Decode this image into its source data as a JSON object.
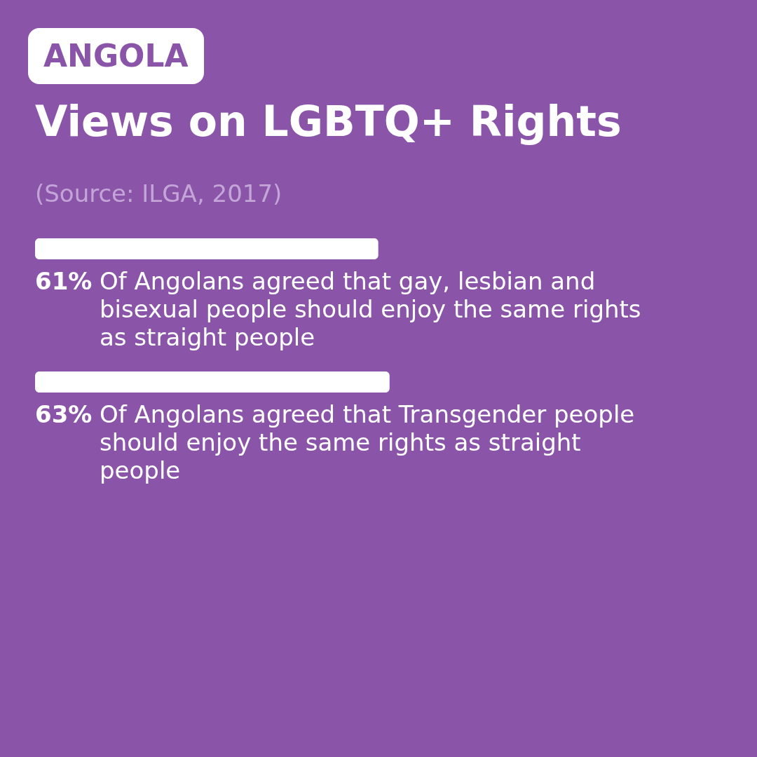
{
  "chart_data": {
    "type": "bar",
    "orientation": "horizontal",
    "title": "Views on LGBTQ+ Rights",
    "annotations": [
      "ANGOLA",
      "(Source: ILGA, 2017)"
    ],
    "categories": [
      "Of Angolans agreed that gay, lesbian and bisexual people should enjoy the same rights as straight people",
      "Of Angolans agreed that Transgender people should enjoy the same rights as straight people"
    ],
    "values": [
      61,
      63
    ],
    "value_labels": [
      "61%",
      "63%"
    ],
    "color": "#ffffff"
  }
}
